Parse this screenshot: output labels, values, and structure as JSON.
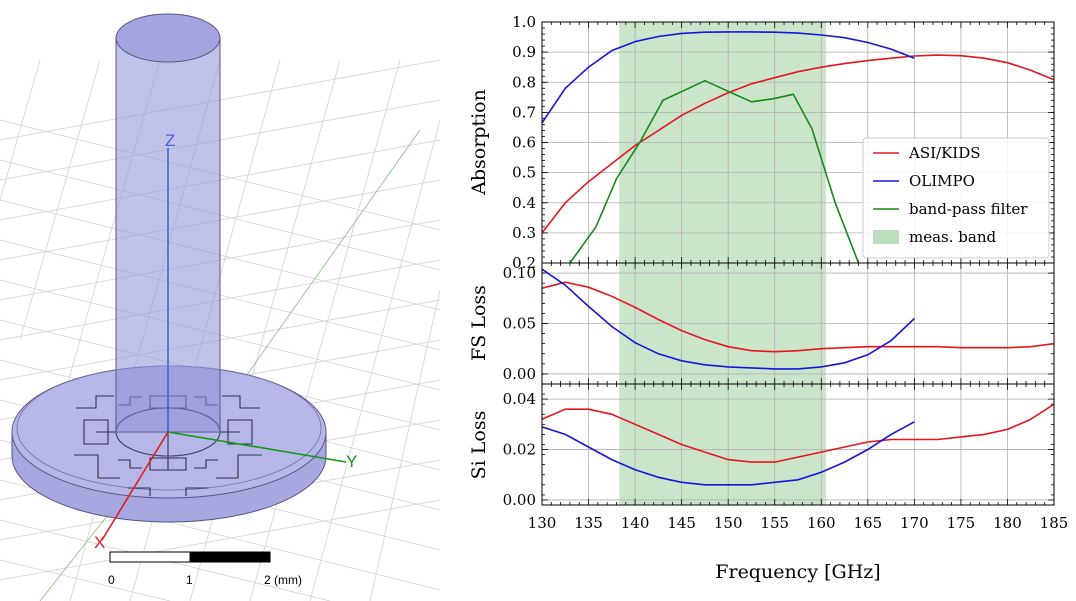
{
  "model": {
    "axis_z": "Z",
    "axis_x": "X",
    "axis_y": "Y",
    "scale_labels": [
      "0",
      "1",
      "2 (mm)"
    ],
    "colors": {
      "body": "#8e8fd6",
      "axis_z": "#3f62e6",
      "axis_x": "#e02020",
      "axis_y": "#119911"
    }
  },
  "chart_data": [
    {
      "type": "line",
      "xlim": [
        130,
        185
      ],
      "ylim": [
        0.2,
        1.0
      ],
      "ylabel": "Absorption",
      "yticks": [
        "0.2",
        "0.3",
        "0.4",
        "0.5",
        "0.6",
        "0.7",
        "0.8",
        "0.9",
        "1.0"
      ],
      "yticks_v": [
        0.2,
        0.3,
        0.4,
        0.5,
        0.6,
        0.7,
        0.8,
        0.9,
        1.0
      ],
      "band": [
        138.3,
        160.5
      ],
      "grid": true,
      "legend_position": "lower-right",
      "legend": [
        "ASI/KIDS",
        "OLIMPO",
        "band-pass filter",
        "meas. band"
      ],
      "series": [
        {
          "name": "ASI/KIDS",
          "color": "#e8141c",
          "x": [
            130,
            132.5,
            135,
            137.5,
            140,
            142.5,
            145,
            147.5,
            150,
            152.5,
            155,
            157.5,
            160,
            162.5,
            165,
            167.5,
            170,
            172.5,
            175,
            177.5,
            180,
            182.5,
            185
          ],
          "y": [
            0.3,
            0.4,
            0.47,
            0.53,
            0.59,
            0.64,
            0.69,
            0.73,
            0.765,
            0.795,
            0.815,
            0.835,
            0.85,
            0.862,
            0.872,
            0.88,
            0.887,
            0.89,
            0.888,
            0.88,
            0.865,
            0.84,
            0.808
          ]
        },
        {
          "name": "OLIMPO",
          "color": "#1616d8",
          "x": [
            130,
            132.5,
            135,
            137.5,
            140,
            142.5,
            145,
            147.5,
            150,
            152.5,
            155,
            157.5,
            160,
            162.5,
            165,
            167.5,
            170
          ],
          "y": [
            0.665,
            0.78,
            0.85,
            0.905,
            0.935,
            0.952,
            0.962,
            0.966,
            0.967,
            0.967,
            0.966,
            0.963,
            0.957,
            0.948,
            0.932,
            0.91,
            0.88
          ]
        },
        {
          "name": "band-pass filter",
          "color": "#168a16",
          "x": [
            133,
            135.8,
            138,
            140.5,
            143,
            147.5,
            150,
            152.5,
            154.8,
            157,
            159,
            161.5,
            164
          ],
          "y": [
            0.2,
            0.32,
            0.48,
            0.6,
            0.74,
            0.805,
            0.77,
            0.735,
            0.745,
            0.76,
            0.645,
            0.4,
            0.2
          ]
        }
      ]
    },
    {
      "type": "line",
      "xlim": [
        130,
        185
      ],
      "ylim": [
        -0.01,
        0.11
      ],
      "ylabel": "FS Loss",
      "yticks": [
        "0.00",
        "0.05",
        "0.10"
      ],
      "yticks_v": [
        0,
        0.05,
        0.1
      ],
      "band": [
        138.3,
        160.5
      ],
      "grid": true,
      "series": [
        {
          "name": "ASI/KIDS",
          "color": "#e8141c",
          "x": [
            130,
            132.5,
            135,
            137.5,
            140,
            142.5,
            145,
            147.5,
            150,
            152.5,
            155,
            157.5,
            160,
            162.5,
            165,
            167.5,
            170,
            172.5,
            175,
            177.5,
            180,
            182.5,
            185
          ],
          "y": [
            0.085,
            0.091,
            0.086,
            0.077,
            0.066,
            0.054,
            0.043,
            0.034,
            0.027,
            0.023,
            0.022,
            0.023,
            0.025,
            0.026,
            0.027,
            0.027,
            0.027,
            0.027,
            0.026,
            0.026,
            0.026,
            0.027,
            0.03
          ]
        },
        {
          "name": "OLIMPO",
          "color": "#1616d8",
          "x": [
            130,
            132.5,
            135,
            137.5,
            140,
            142.5,
            145,
            147.5,
            150,
            152.5,
            155,
            157.5,
            160,
            162.5,
            165,
            167.5,
            170
          ],
          "y": [
            0.104,
            0.088,
            0.067,
            0.047,
            0.031,
            0.02,
            0.013,
            0.009,
            0.007,
            0.006,
            0.005,
            0.005,
            0.007,
            0.011,
            0.019,
            0.033,
            0.055
          ]
        }
      ]
    },
    {
      "type": "line",
      "xlim": [
        130,
        185
      ],
      "ylim": [
        -0.002,
        0.046
      ],
      "ylabel": "Si Loss",
      "xlabel": "Frequency [GHz]",
      "yticks": [
        "0.00",
        "0.02",
        "0.04"
      ],
      "yticks_v": [
        0,
        0.02,
        0.04
      ],
      "xticks": [
        "130",
        "135",
        "140",
        "145",
        "150",
        "155",
        "160",
        "165",
        "170",
        "175",
        "180",
        "185"
      ],
      "xticks_v": [
        130,
        135,
        140,
        145,
        150,
        155,
        160,
        165,
        170,
        175,
        180,
        185
      ],
      "band": [
        138.3,
        160.5
      ],
      "grid": true,
      "series": [
        {
          "name": "ASI/KIDS",
          "color": "#e8141c",
          "x": [
            130,
            132.5,
            135,
            137.5,
            140,
            142.5,
            145,
            147.5,
            150,
            152.5,
            155,
            157.5,
            160,
            162.5,
            165,
            167.5,
            170,
            172.5,
            175,
            177.5,
            180,
            182.5,
            185
          ],
          "y": [
            0.032,
            0.036,
            0.036,
            0.034,
            0.03,
            0.026,
            0.022,
            0.019,
            0.016,
            0.015,
            0.015,
            0.017,
            0.019,
            0.021,
            0.023,
            0.024,
            0.024,
            0.024,
            0.025,
            0.026,
            0.028,
            0.032,
            0.038
          ]
        },
        {
          "name": "OLIMPO",
          "color": "#1616d8",
          "x": [
            130,
            132.5,
            135,
            137.5,
            140,
            142.5,
            145,
            147.5,
            150,
            152.5,
            155,
            157.5,
            160,
            162.5,
            165,
            167.5,
            170
          ],
          "y": [
            0.029,
            0.026,
            0.021,
            0.016,
            0.012,
            0.009,
            0.007,
            0.006,
            0.006,
            0.006,
            0.007,
            0.008,
            0.011,
            0.015,
            0.02,
            0.026,
            0.031
          ]
        }
      ]
    }
  ]
}
